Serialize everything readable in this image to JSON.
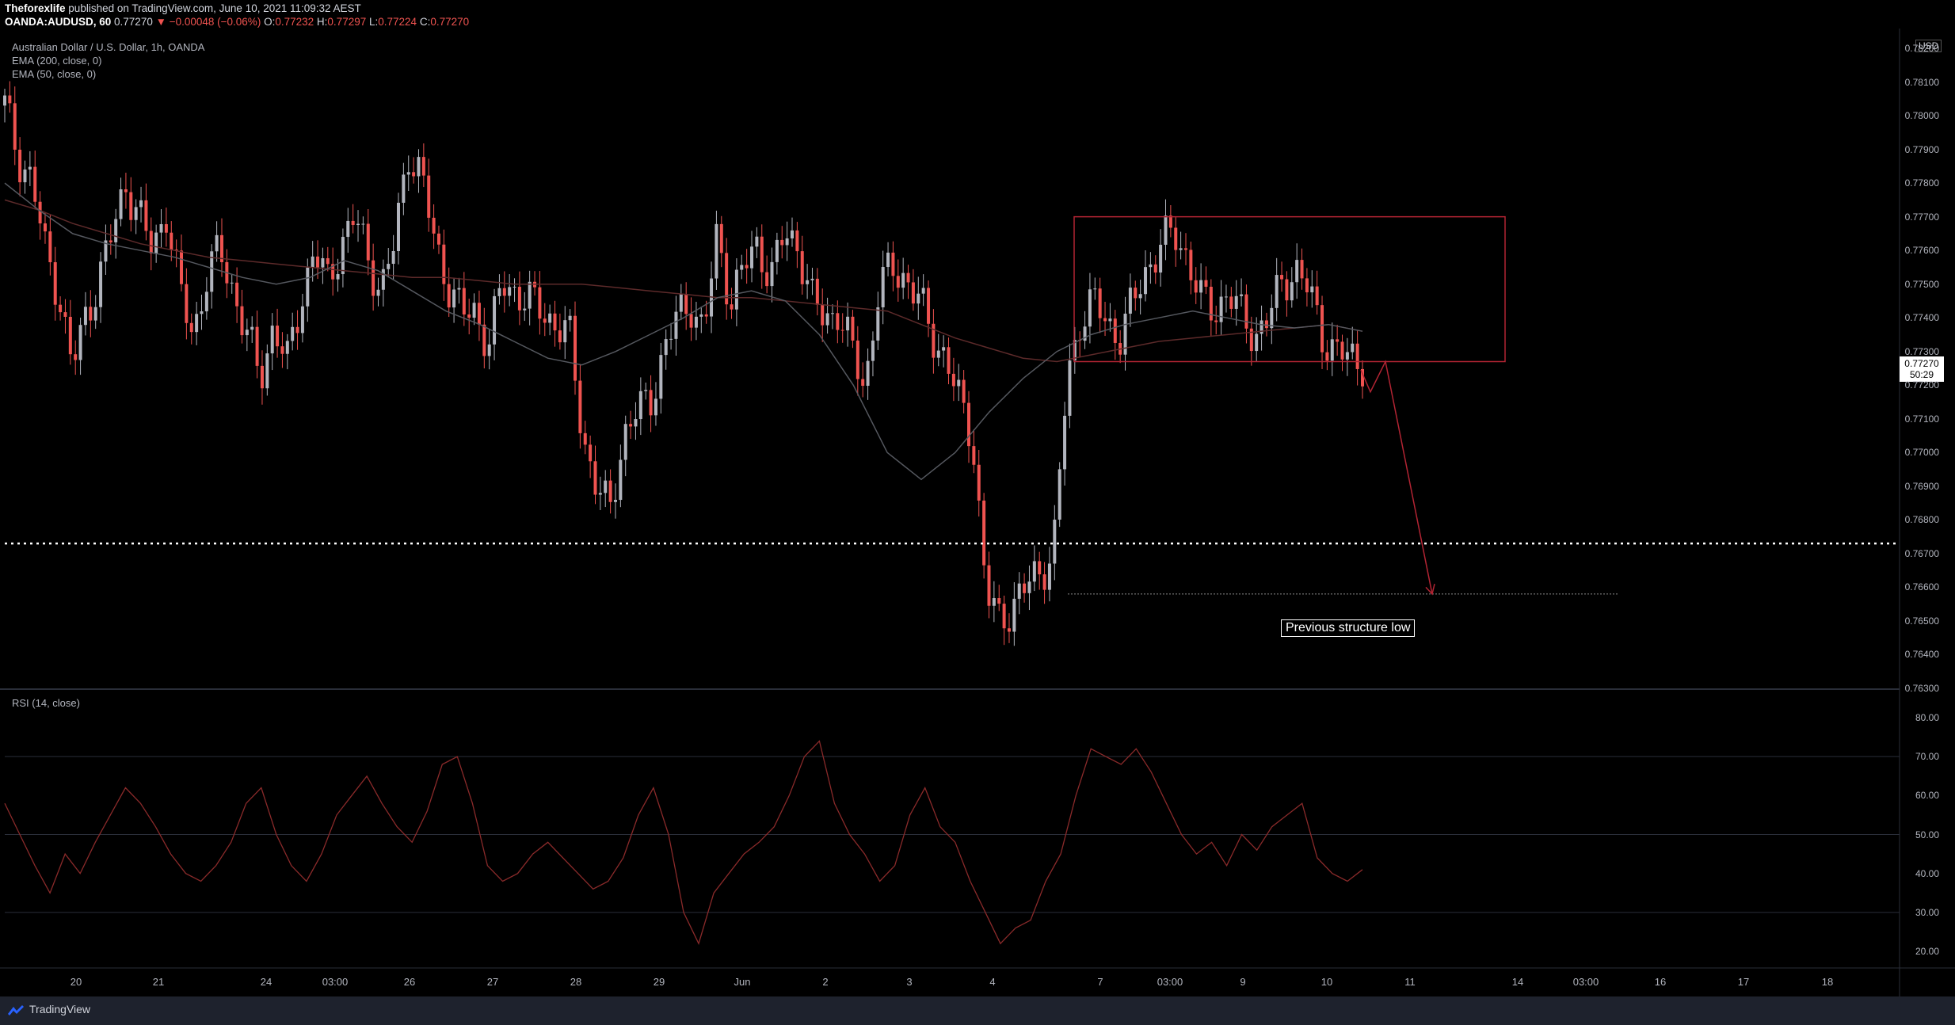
{
  "header": {
    "author": "Theforexlife",
    "published_text": "published on TradingView.com, June 10, 2021 11:09:32 AEST",
    "symbol": "OANDA:AUDUSD, 60",
    "last_change": "▼ −0.00048 (−0.06%)",
    "o_label": "O:",
    "o_value": "0.77232",
    "h_label": "H:",
    "h_value": "0.77297",
    "l_label": "L:",
    "l_value": "0.77224",
    "c_label": "C:",
    "c_value": "0.77270"
  },
  "legend": {
    "title": "Australian Dollar / U.S. Dollar, 1h, OANDA",
    "ema200": "EMA (200, close, 0)",
    "ema50": "EMA (50, close, 0)",
    "rsi": "RSI (14, close)"
  },
  "price_axis": {
    "currency": "USD",
    "ticks": [
      "0.78200",
      "0.78100",
      "0.78000",
      "0.77900",
      "0.77800",
      "0.77700",
      "0.77600",
      "0.77500",
      "0.77400",
      "0.77300",
      "0.77200",
      "0.77100",
      "0.77000",
      "0.76900",
      "0.76800",
      "0.76700",
      "0.76600",
      "0.76500",
      "0.76400",
      "0.76300"
    ],
    "current_price": "0.77270",
    "countdown": "50:29"
  },
  "rsi_axis": {
    "ticks": [
      "80.00",
      "70.00",
      "60.00",
      "50.00",
      "40.00",
      "30.00",
      "20.00"
    ]
  },
  "time_axis": {
    "ticks": [
      "20",
      "21",
      "24",
      "03:00",
      "26",
      "27",
      "28",
      "29",
      "Jun",
      "2",
      "3",
      "4",
      "7",
      "03:00",
      "9",
      "10",
      "11",
      "14",
      "03:00",
      "16",
      "17",
      "18"
    ]
  },
  "annotation": {
    "text": "Previous structure low"
  },
  "footer": {
    "logo_text": "TradingView"
  },
  "colors": {
    "up": "#b2b5be",
    "down": "#ef5350",
    "drawing": "#b22433",
    "background": "#000000"
  },
  "chart_data": {
    "type": "candlestick",
    "series": [
      {
        "name": "AUDUSD",
        "ohlc_source": "price"
      },
      {
        "name": "EMA (200, close, 0)"
      },
      {
        "name": "EMA (50, close, 0)"
      },
      {
        "name": "RSI (14, close)"
      }
    ],
    "ylim": [
      0.763,
      0.782
    ],
    "rsi_ylim": [
      20,
      80
    ],
    "key_prices": {
      "support_dotted": 0.7673,
      "structure_low": 0.7658,
      "box_top": 0.777,
      "box_bottom": 0.7727
    },
    "price_path": [
      0.7803,
      0.7788,
      0.7781,
      0.776,
      0.7748,
      0.7725,
      0.774,
      0.7752,
      0.7765,
      0.778,
      0.777,
      0.776,
      0.7772,
      0.7748,
      0.7735,
      0.7752,
      0.776,
      0.7748,
      0.7735,
      0.7722,
      0.7738,
      0.7726,
      0.7745,
      0.776,
      0.775,
      0.7762,
      0.777,
      0.7758,
      0.7748,
      0.7762,
      0.779,
      0.7782,
      0.7762,
      0.775,
      0.7741,
      0.7742,
      0.7732,
      0.775,
      0.7748,
      0.7745,
      0.7742,
      0.7738,
      0.7735,
      0.7705,
      0.769,
      0.7682,
      0.7705,
      0.7712,
      0.7715,
      0.773,
      0.774,
      0.7745,
      0.7735,
      0.7765,
      0.7745,
      0.7755,
      0.7762,
      0.7752,
      0.7765,
      0.7762,
      0.7745,
      0.774,
      0.7742,
      0.773,
      0.772,
      0.7748,
      0.7755,
      0.7752,
      0.7745,
      0.7735,
      0.7728,
      0.7715,
      0.7705,
      0.7658,
      0.765,
      0.7655,
      0.766,
      0.7665,
      0.767,
      0.772,
      0.774,
      0.7745,
      0.7738,
      0.7735,
      0.7745,
      0.7755,
      0.7762,
      0.7765,
      0.7758,
      0.7745,
      0.7742,
      0.7748,
      0.774,
      0.7735,
      0.774,
      0.775,
      0.7755,
      0.7748,
      0.7735,
      0.773,
      0.7728,
      0.7727
    ],
    "ema200_path": [
      0.7775,
      0.7772,
      0.7768,
      0.7765,
      0.7762,
      0.776,
      0.7758,
      0.7757,
      0.7756,
      0.7755,
      0.7754,
      0.7753,
      0.7752,
      0.7752,
      0.7751,
      0.775,
      0.775,
      0.775,
      0.7749,
      0.7748,
      0.7747,
      0.7746,
      0.7746,
      0.7745,
      0.7744,
      0.7743,
      0.7742,
      0.7738,
      0.7734,
      0.7731,
      0.7728,
      0.7727,
      0.7729,
      0.7731,
      0.7733,
      0.7734,
      0.7735,
      0.7736,
      0.7737,
      0.7738,
      0.7736
    ],
    "ema50_path": [
      0.778,
      0.7772,
      0.7765,
      0.7762,
      0.776,
      0.7758,
      0.7755,
      0.7752,
      0.775,
      0.7752,
      0.7757,
      0.7754,
      0.7748,
      0.7742,
      0.7738,
      0.7733,
      0.7728,
      0.7726,
      0.773,
      0.7735,
      0.774,
      0.7746,
      0.7748,
      0.7745,
      0.7735,
      0.772,
      0.77,
      0.7692,
      0.77,
      0.7712,
      0.7722,
      0.773,
      0.7735,
      0.7738,
      0.774,
      0.7742,
      0.774,
      0.7738,
      0.7737,
      0.7738,
      0.7736
    ],
    "rsi_path": [
      58,
      50,
      42,
      35,
      45,
      40,
      48,
      55,
      62,
      58,
      52,
      45,
      40,
      38,
      42,
      48,
      58,
      62,
      50,
      42,
      38,
      45,
      55,
      60,
      65,
      58,
      52,
      48,
      56,
      68,
      70,
      58,
      42,
      38,
      40,
      45,
      48,
      44,
      40,
      36,
      38,
      44,
      55,
      62,
      50,
      30,
      22,
      35,
      40,
      45,
      48,
      52,
      60,
      70,
      74,
      58,
      50,
      45,
      38,
      42,
      55,
      62,
      52,
      48,
      38,
      30,
      22,
      26,
      28,
      38,
      45,
      60,
      72,
      70,
      68,
      72,
      66,
      58,
      50,
      45,
      48,
      42,
      50,
      46,
      52,
      55,
      58,
      44,
      40,
      38,
      41
    ]
  }
}
